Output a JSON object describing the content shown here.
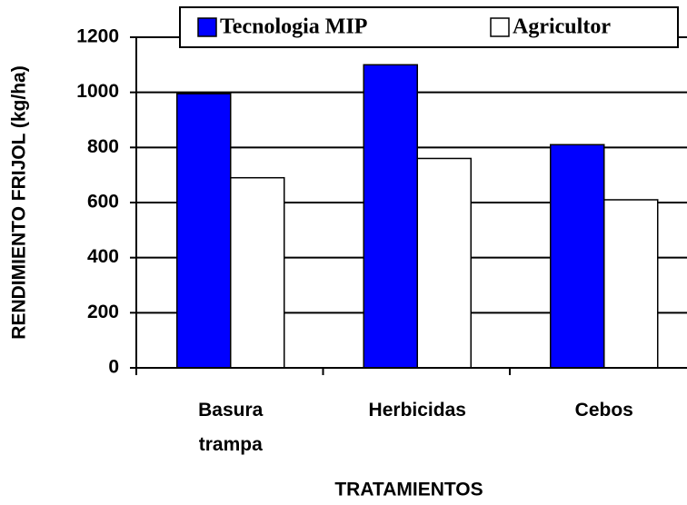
{
  "chart_data": {
    "type": "bar",
    "categories": [
      "Basura trampa",
      "Herbicidas",
      "Cebos"
    ],
    "series": [
      {
        "name": "Tecnologia MIP",
        "color": "#0000ff",
        "values": [
          995,
          1100,
          810
        ]
      },
      {
        "name": "Agricultor",
        "color": "#ffffff",
        "values": [
          690,
          760,
          610
        ]
      }
    ],
    "ylabel": "RENDIMIENTO FRIJOL (kg/ha)",
    "xlabel": "TRATAMIENTOS",
    "ylim": [
      0,
      1200
    ],
    "yticks": [
      0,
      200,
      400,
      600,
      800,
      1000,
      1200
    ],
    "grid": true,
    "legend": "top"
  }
}
